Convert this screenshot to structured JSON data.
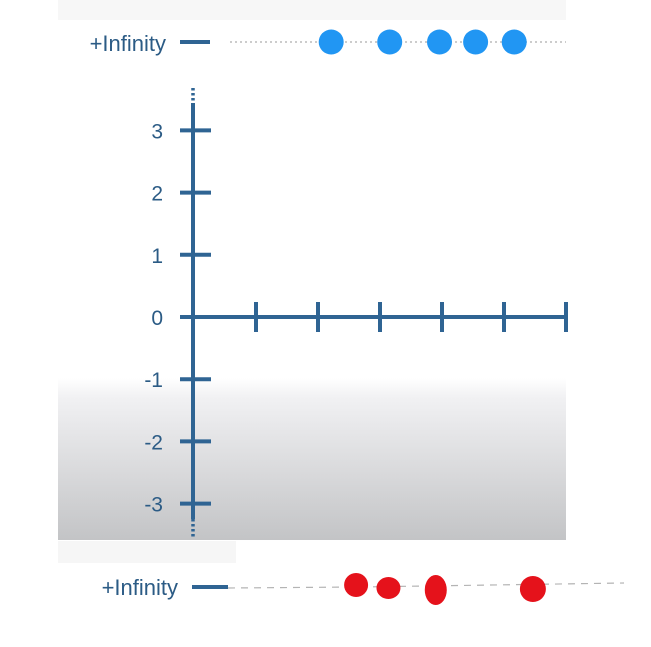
{
  "colors": {
    "axis": "#2f6493",
    "label": "#2b5b85",
    "top_dots": "#2196f3",
    "bottom_dots": "#e5121b",
    "top_guide": "#bcbcbc",
    "bottom_guide": "#b4b4b4"
  },
  "chart_data": [
    {
      "type": "scatter",
      "title": "",
      "row_label": "+Infinity",
      "series": [
        {
          "x": [
            1.11,
            1.58,
            1.98,
            2.27,
            2.58
          ]
        }
      ]
    },
    {
      "type": "line",
      "title": "",
      "xlabel": "",
      "ylabel": "",
      "y_ticks": [
        "3",
        "2",
        "1",
        "0",
        "-1",
        "-2",
        "-3"
      ],
      "ylim": [
        -3.5,
        3.5
      ],
      "x_ticks_count": 5,
      "x_tick_labels": [],
      "grid": false,
      "series": []
    },
    {
      "type": "scatter",
      "title": "",
      "row_label": "+Infinity",
      "series": [
        {
          "x": [
            1.31,
            1.57,
            1.95,
            2.73
          ]
        }
      ]
    }
  ]
}
